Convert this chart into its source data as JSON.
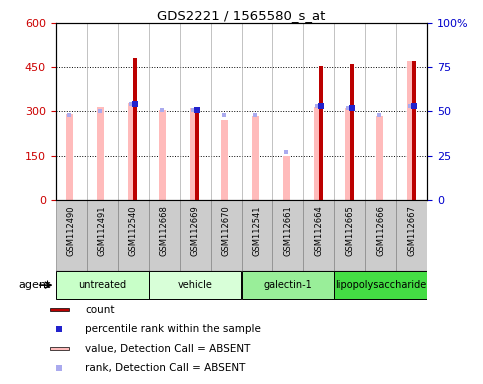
{
  "title": "GDS2221 / 1565580_s_at",
  "samples": [
    "GSM112490",
    "GSM112491",
    "GSM112540",
    "GSM112668",
    "GSM112669",
    "GSM112670",
    "GSM112541",
    "GSM112661",
    "GSM112664",
    "GSM112665",
    "GSM112666",
    "GSM112667"
  ],
  "count_values": [
    0,
    0,
    480,
    0,
    315,
    0,
    0,
    0,
    455,
    460,
    0,
    470
  ],
  "value_absent": [
    290,
    315,
    330,
    305,
    310,
    270,
    285,
    150,
    315,
    310,
    285,
    470
  ],
  "pct_rank": [
    48,
    50,
    54,
    51,
    51,
    48,
    48,
    27,
    53,
    52,
    48,
    53
  ],
  "rank_absent": [
    48,
    50,
    54,
    51,
    51,
    48,
    48,
    27,
    53,
    52,
    48,
    53
  ],
  "has_count": [
    false,
    false,
    true,
    false,
    true,
    false,
    false,
    false,
    true,
    true,
    false,
    true
  ],
  "group_info": [
    {
      "label": "untreated",
      "color": "#c8ffc8",
      "start": 0,
      "end": 3
    },
    {
      "label": "vehicle",
      "color": "#d8ffd8",
      "start": 3,
      "end": 6
    },
    {
      "label": "galectin-1",
      "color": "#99ee99",
      "start": 6,
      "end": 9
    },
    {
      "label": "lipopolysaccharide",
      "color": "#44dd44",
      "start": 9,
      "end": 12
    }
  ],
  "pink_bar_color": "#ffbbbb",
  "red_bar_color": "#bb0000",
  "blue_sq_color": "#2222cc",
  "purple_sq_color": "#aaaaee",
  "xlabels_bg": "#cccccc",
  "plot_bg": "#ffffff"
}
